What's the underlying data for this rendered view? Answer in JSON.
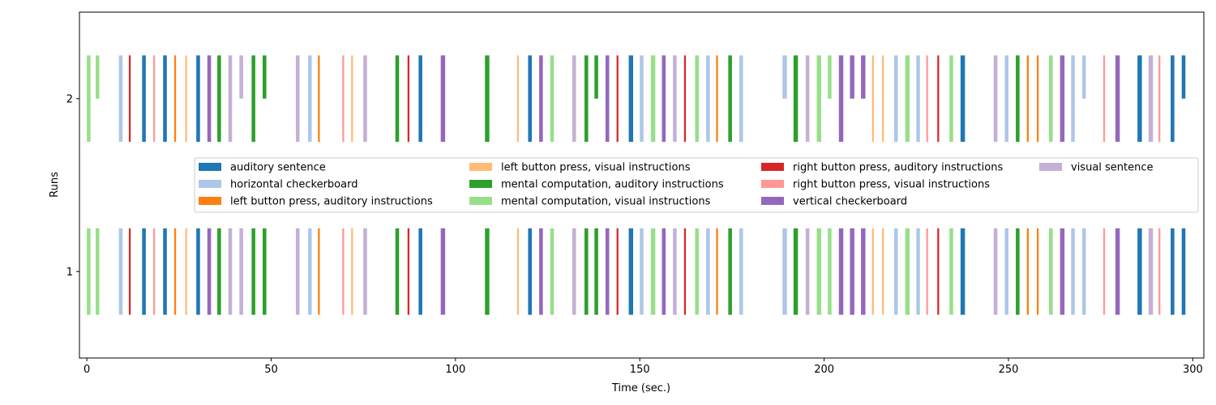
{
  "chart_data": {
    "type": "event-raster",
    "xlabel": "Time (sec.)",
    "ylabel": "Runs",
    "xlim": [
      -2,
      303
    ],
    "ylim": [
      0.5,
      2.5
    ],
    "x_ticks": [
      0,
      50,
      100,
      150,
      200,
      250,
      300
    ],
    "y_ticks": [
      1,
      2
    ],
    "grid": false,
    "legend_placement": "center",
    "legend_columns": 4,
    "conditions": [
      {
        "name": "auditory sentence",
        "color": "#1f77b4"
      },
      {
        "name": "horizontal checkerboard",
        "color": "#aec7e8"
      },
      {
        "name": "left button press, auditory instructions",
        "color": "#ff7f0e"
      },
      {
        "name": "left button press, visual instructions",
        "color": "#ffbb78"
      },
      {
        "name": "mental computation, auditory instructions",
        "color": "#2ca02c"
      },
      {
        "name": "mental computation, visual instructions",
        "color": "#98df8a"
      },
      {
        "name": "right button press, auditory instructions",
        "color": "#d62728"
      },
      {
        "name": "right button press, visual instructions",
        "color": "#ff9896"
      },
      {
        "name": "vertical checkerboard",
        "color": "#9467bd"
      },
      {
        "name": "visual sentence",
        "color": "#c5b0d5"
      }
    ],
    "runs": [
      {
        "run": 1,
        "events": [
          {
            "c": 5,
            "onset": 0.0,
            "duration": 1.0
          },
          {
            "c": 5,
            "onset": 2.4,
            "duration": 1.0
          },
          {
            "c": 1,
            "onset": 8.7,
            "duration": 1.0
          },
          {
            "c": 6,
            "onset": 11.4,
            "duration": 0.5
          },
          {
            "c": 0,
            "onset": 15.0,
            "duration": 1.0
          },
          {
            "c": 7,
            "onset": 18.0,
            "duration": 0.5
          },
          {
            "c": 0,
            "onset": 20.7,
            "duration": 1.0
          },
          {
            "c": 2,
            "onset": 23.7,
            "duration": 0.5
          },
          {
            "c": 3,
            "onset": 26.7,
            "duration": 0.5
          },
          {
            "c": 0,
            "onset": 29.7,
            "duration": 1.0
          },
          {
            "c": 8,
            "onset": 32.7,
            "duration": 1.0
          },
          {
            "c": 4,
            "onset": 35.4,
            "duration": 1.0
          },
          {
            "c": 9,
            "onset": 38.4,
            "duration": 1.0
          },
          {
            "c": 9,
            "onset": 41.4,
            "duration": 1.0
          },
          {
            "c": 4,
            "onset": 44.7,
            "duration": 1.0
          },
          {
            "c": 4,
            "onset": 47.7,
            "duration": 1.0
          },
          {
            "c": 9,
            "onset": 56.7,
            "duration": 1.0
          },
          {
            "c": 1,
            "onset": 60.0,
            "duration": 1.0
          },
          {
            "c": 2,
            "onset": 62.7,
            "duration": 0.5
          },
          {
            "c": 7,
            "onset": 69.3,
            "duration": 0.5
          },
          {
            "c": 3,
            "onset": 71.7,
            "duration": 0.5
          },
          {
            "c": 9,
            "onset": 75.0,
            "duration": 1.0
          },
          {
            "c": 4,
            "onset": 83.7,
            "duration": 1.0
          },
          {
            "c": 6,
            "onset": 87.0,
            "duration": 0.5
          },
          {
            "c": 0,
            "onset": 90.0,
            "duration": 1.0
          },
          {
            "c": 8,
            "onset": 96.0,
            "duration": 1.2
          },
          {
            "c": 4,
            "onset": 108.0,
            "duration": 1.2
          },
          {
            "c": 3,
            "onset": 116.7,
            "duration": 0.5
          },
          {
            "c": 0,
            "onset": 119.7,
            "duration": 1.0
          },
          {
            "c": 8,
            "onset": 122.7,
            "duration": 1.0
          },
          {
            "c": 5,
            "onset": 125.7,
            "duration": 1.0
          },
          {
            "c": 9,
            "onset": 131.7,
            "duration": 1.0
          },
          {
            "c": 4,
            "onset": 135.0,
            "duration": 1.0
          },
          {
            "c": 4,
            "onset": 137.7,
            "duration": 1.0
          },
          {
            "c": 8,
            "onset": 140.7,
            "duration": 1.0
          },
          {
            "c": 6,
            "onset": 143.7,
            "duration": 0.5
          },
          {
            "c": 0,
            "onset": 147.0,
            "duration": 1.2
          },
          {
            "c": 1,
            "onset": 150.0,
            "duration": 1.0
          },
          {
            "c": 5,
            "onset": 153.0,
            "duration": 1.2
          },
          {
            "c": 8,
            "onset": 156.0,
            "duration": 1.0
          },
          {
            "c": 9,
            "onset": 159.0,
            "duration": 1.0
          },
          {
            "c": 6,
            "onset": 162.0,
            "duration": 0.5
          },
          {
            "c": 5,
            "onset": 165.0,
            "duration": 1.0
          },
          {
            "c": 1,
            "onset": 168.0,
            "duration": 1.0
          },
          {
            "c": 2,
            "onset": 170.7,
            "duration": 0.5
          },
          {
            "c": 4,
            "onset": 174.0,
            "duration": 1.0
          },
          {
            "c": 1,
            "onset": 177.0,
            "duration": 1.0
          },
          {
            "c": 1,
            "onset": 188.7,
            "duration": 1.2
          },
          {
            "c": 4,
            "onset": 191.7,
            "duration": 1.2
          },
          {
            "c": 9,
            "onset": 195.0,
            "duration": 1.0
          },
          {
            "c": 5,
            "onset": 198.0,
            "duration": 1.2
          },
          {
            "c": 5,
            "onset": 201.0,
            "duration": 1.0
          },
          {
            "c": 8,
            "onset": 204.0,
            "duration": 1.2
          },
          {
            "c": 8,
            "onset": 207.0,
            "duration": 1.2
          },
          {
            "c": 8,
            "onset": 210.0,
            "duration": 1.2
          },
          {
            "c": 3,
            "onset": 213.0,
            "duration": 0.5
          },
          {
            "c": 3,
            "onset": 215.7,
            "duration": 0.5
          },
          {
            "c": 1,
            "onset": 219.0,
            "duration": 1.0
          },
          {
            "c": 5,
            "onset": 222.0,
            "duration": 1.2
          },
          {
            "c": 1,
            "onset": 225.0,
            "duration": 1.0
          },
          {
            "c": 7,
            "onset": 227.7,
            "duration": 0.5
          },
          {
            "c": 6,
            "onset": 230.7,
            "duration": 0.5
          },
          {
            "c": 5,
            "onset": 234.0,
            "duration": 1.0
          },
          {
            "c": 0,
            "onset": 237.0,
            "duration": 1.2
          },
          {
            "c": 9,
            "onset": 246.0,
            "duration": 1.0
          },
          {
            "c": 1,
            "onset": 249.0,
            "duration": 1.0
          },
          {
            "c": 4,
            "onset": 252.0,
            "duration": 1.0
          },
          {
            "c": 2,
            "onset": 255.0,
            "duration": 0.5
          },
          {
            "c": 2,
            "onset": 257.7,
            "duration": 0.5
          },
          {
            "c": 5,
            "onset": 261.0,
            "duration": 1.0
          },
          {
            "c": 8,
            "onset": 264.0,
            "duration": 1.2
          },
          {
            "c": 1,
            "onset": 267.0,
            "duration": 1.0
          },
          {
            "c": 1,
            "onset": 270.0,
            "duration": 1.0
          },
          {
            "c": 7,
            "onset": 275.7,
            "duration": 0.5
          },
          {
            "c": 8,
            "onset": 279.0,
            "duration": 1.2
          },
          {
            "c": 0,
            "onset": 285.0,
            "duration": 1.2
          },
          {
            "c": 9,
            "onset": 288.0,
            "duration": 1.2
          },
          {
            "c": 7,
            "onset": 290.7,
            "duration": 0.5
          },
          {
            "c": 0,
            "onset": 294.0,
            "duration": 1.0
          },
          {
            "c": 0,
            "onset": 297.0,
            "duration": 1.0
          }
        ]
      },
      {
        "run": 2,
        "events": [
          {
            "c": 5,
            "onset": 0.0,
            "duration": 1.0,
            "height": 0.5
          },
          {
            "c": 5,
            "onset": 2.4,
            "duration": 1.0,
            "height": 0.25
          },
          {
            "c": 1,
            "onset": 8.7,
            "duration": 1.0,
            "height": 0.5
          },
          {
            "c": 6,
            "onset": 11.4,
            "duration": 0.5,
            "height": 0.5
          },
          {
            "c": 0,
            "onset": 15.0,
            "duration": 1.0,
            "height": 0.5
          },
          {
            "c": 7,
            "onset": 18.0,
            "duration": 0.5,
            "height": 0.5
          },
          {
            "c": 0,
            "onset": 20.7,
            "duration": 1.0,
            "height": 0.5
          },
          {
            "c": 2,
            "onset": 23.7,
            "duration": 0.5,
            "height": 0.5
          },
          {
            "c": 3,
            "onset": 26.7,
            "duration": 0.5,
            "height": 0.5
          },
          {
            "c": 0,
            "onset": 29.7,
            "duration": 1.0,
            "height": 0.5
          },
          {
            "c": 8,
            "onset": 32.7,
            "duration": 1.0,
            "height": 0.5
          },
          {
            "c": 4,
            "onset": 35.4,
            "duration": 1.0,
            "height": 0.5
          },
          {
            "c": 9,
            "onset": 38.4,
            "duration": 1.0,
            "height": 0.5
          },
          {
            "c": 9,
            "onset": 41.4,
            "duration": 1.0,
            "height": 0.25
          },
          {
            "c": 4,
            "onset": 44.7,
            "duration": 1.0,
            "height": 0.5
          },
          {
            "c": 4,
            "onset": 47.7,
            "duration": 1.0,
            "height": 0.25
          },
          {
            "c": 9,
            "onset": 56.7,
            "duration": 1.0,
            "height": 0.5
          },
          {
            "c": 1,
            "onset": 60.0,
            "duration": 1.0,
            "height": 0.5
          },
          {
            "c": 2,
            "onset": 62.7,
            "duration": 0.5,
            "height": 0.5
          },
          {
            "c": 7,
            "onset": 69.3,
            "duration": 0.5,
            "height": 0.5
          },
          {
            "c": 3,
            "onset": 71.7,
            "duration": 0.5,
            "height": 0.5
          },
          {
            "c": 9,
            "onset": 75.0,
            "duration": 1.0,
            "height": 0.5
          },
          {
            "c": 4,
            "onset": 83.7,
            "duration": 1.0,
            "height": 0.5
          },
          {
            "c": 6,
            "onset": 87.0,
            "duration": 0.5,
            "height": 0.5
          },
          {
            "c": 0,
            "onset": 90.0,
            "duration": 1.0,
            "height": 0.5
          },
          {
            "c": 8,
            "onset": 96.0,
            "duration": 1.2,
            "height": 0.5
          },
          {
            "c": 4,
            "onset": 108.0,
            "duration": 1.2,
            "height": 0.5
          },
          {
            "c": 3,
            "onset": 116.7,
            "duration": 0.5,
            "height": 0.5
          },
          {
            "c": 0,
            "onset": 119.7,
            "duration": 1.0,
            "height": 0.5
          },
          {
            "c": 8,
            "onset": 122.7,
            "duration": 1.0,
            "height": 0.5
          },
          {
            "c": 5,
            "onset": 125.7,
            "duration": 1.0,
            "height": 0.5
          },
          {
            "c": 9,
            "onset": 131.7,
            "duration": 1.0,
            "height": 0.5
          },
          {
            "c": 4,
            "onset": 135.0,
            "duration": 1.0,
            "height": 0.5
          },
          {
            "c": 4,
            "onset": 137.7,
            "duration": 1.0,
            "height": 0.25
          },
          {
            "c": 8,
            "onset": 140.7,
            "duration": 1.0,
            "height": 0.5
          },
          {
            "c": 6,
            "onset": 143.7,
            "duration": 0.5,
            "height": 0.5
          },
          {
            "c": 0,
            "onset": 147.0,
            "duration": 1.2,
            "height": 0.5
          },
          {
            "c": 1,
            "onset": 150.0,
            "duration": 1.0,
            "height": 0.5
          },
          {
            "c": 5,
            "onset": 153.0,
            "duration": 1.2,
            "height": 0.5
          },
          {
            "c": 8,
            "onset": 156.0,
            "duration": 1.0,
            "height": 0.5
          },
          {
            "c": 9,
            "onset": 159.0,
            "duration": 1.0,
            "height": 0.5
          },
          {
            "c": 6,
            "onset": 162.0,
            "duration": 0.5,
            "height": 0.5
          },
          {
            "c": 5,
            "onset": 165.0,
            "duration": 1.0,
            "height": 0.5
          },
          {
            "c": 1,
            "onset": 168.0,
            "duration": 1.0,
            "height": 0.5
          },
          {
            "c": 2,
            "onset": 170.7,
            "duration": 0.5,
            "height": 0.5
          },
          {
            "c": 4,
            "onset": 174.0,
            "duration": 1.0,
            "height": 0.5
          },
          {
            "c": 1,
            "onset": 177.0,
            "duration": 1.0,
            "height": 0.5
          },
          {
            "c": 1,
            "onset": 188.7,
            "duration": 1.2,
            "height": 0.25
          },
          {
            "c": 4,
            "onset": 191.7,
            "duration": 1.2,
            "height": 0.5
          },
          {
            "c": 9,
            "onset": 195.0,
            "duration": 1.0,
            "height": 0.5
          },
          {
            "c": 5,
            "onset": 198.0,
            "duration": 1.2,
            "height": 0.5
          },
          {
            "c": 5,
            "onset": 201.0,
            "duration": 1.0,
            "height": 0.25
          },
          {
            "c": 8,
            "onset": 204.0,
            "duration": 1.2,
            "height": 0.5
          },
          {
            "c": 8,
            "onset": 207.0,
            "duration": 1.2,
            "height": 0.25
          },
          {
            "c": 8,
            "onset": 210.0,
            "duration": 1.2,
            "height": 0.25
          },
          {
            "c": 3,
            "onset": 213.0,
            "duration": 0.5,
            "height": 0.5
          },
          {
            "c": 3,
            "onset": 215.7,
            "duration": 0.5,
            "height": 0.5
          },
          {
            "c": 1,
            "onset": 219.0,
            "duration": 1.0,
            "height": 0.5
          },
          {
            "c": 5,
            "onset": 222.0,
            "duration": 1.2,
            "height": 0.5
          },
          {
            "c": 1,
            "onset": 225.0,
            "duration": 1.0,
            "height": 0.5
          },
          {
            "c": 7,
            "onset": 227.7,
            "duration": 0.5,
            "height": 0.5
          },
          {
            "c": 6,
            "onset": 230.7,
            "duration": 0.5,
            "height": 0.5
          },
          {
            "c": 5,
            "onset": 234.0,
            "duration": 1.0,
            "height": 0.5
          },
          {
            "c": 0,
            "onset": 237.0,
            "duration": 1.2,
            "height": 0.5
          },
          {
            "c": 9,
            "onset": 246.0,
            "duration": 1.0,
            "height": 0.5
          },
          {
            "c": 1,
            "onset": 249.0,
            "duration": 1.0,
            "height": 0.5
          },
          {
            "c": 4,
            "onset": 252.0,
            "duration": 1.0,
            "height": 0.5
          },
          {
            "c": 2,
            "onset": 255.0,
            "duration": 0.5,
            "height": 0.5
          },
          {
            "c": 2,
            "onset": 257.7,
            "duration": 0.5,
            "height": 0.5
          },
          {
            "c": 5,
            "onset": 261.0,
            "duration": 1.0,
            "height": 0.5
          },
          {
            "c": 8,
            "onset": 264.0,
            "duration": 1.2,
            "height": 0.5
          },
          {
            "c": 1,
            "onset": 267.0,
            "duration": 1.0,
            "height": 0.5
          },
          {
            "c": 1,
            "onset": 270.0,
            "duration": 1.0,
            "height": 0.25
          },
          {
            "c": 7,
            "onset": 275.7,
            "duration": 0.5,
            "height": 0.5
          },
          {
            "c": 8,
            "onset": 279.0,
            "duration": 1.2,
            "height": 0.5
          },
          {
            "c": 0,
            "onset": 285.0,
            "duration": 1.2,
            "height": 0.5
          },
          {
            "c": 9,
            "onset": 288.0,
            "duration": 1.2,
            "height": 0.5
          },
          {
            "c": 7,
            "onset": 290.7,
            "duration": 0.5,
            "height": 0.5
          },
          {
            "c": 0,
            "onset": 294.0,
            "duration": 1.0,
            "height": 0.5
          },
          {
            "c": 0,
            "onset": 297.0,
            "duration": 1.0,
            "height": 0.25
          }
        ]
      }
    ]
  }
}
